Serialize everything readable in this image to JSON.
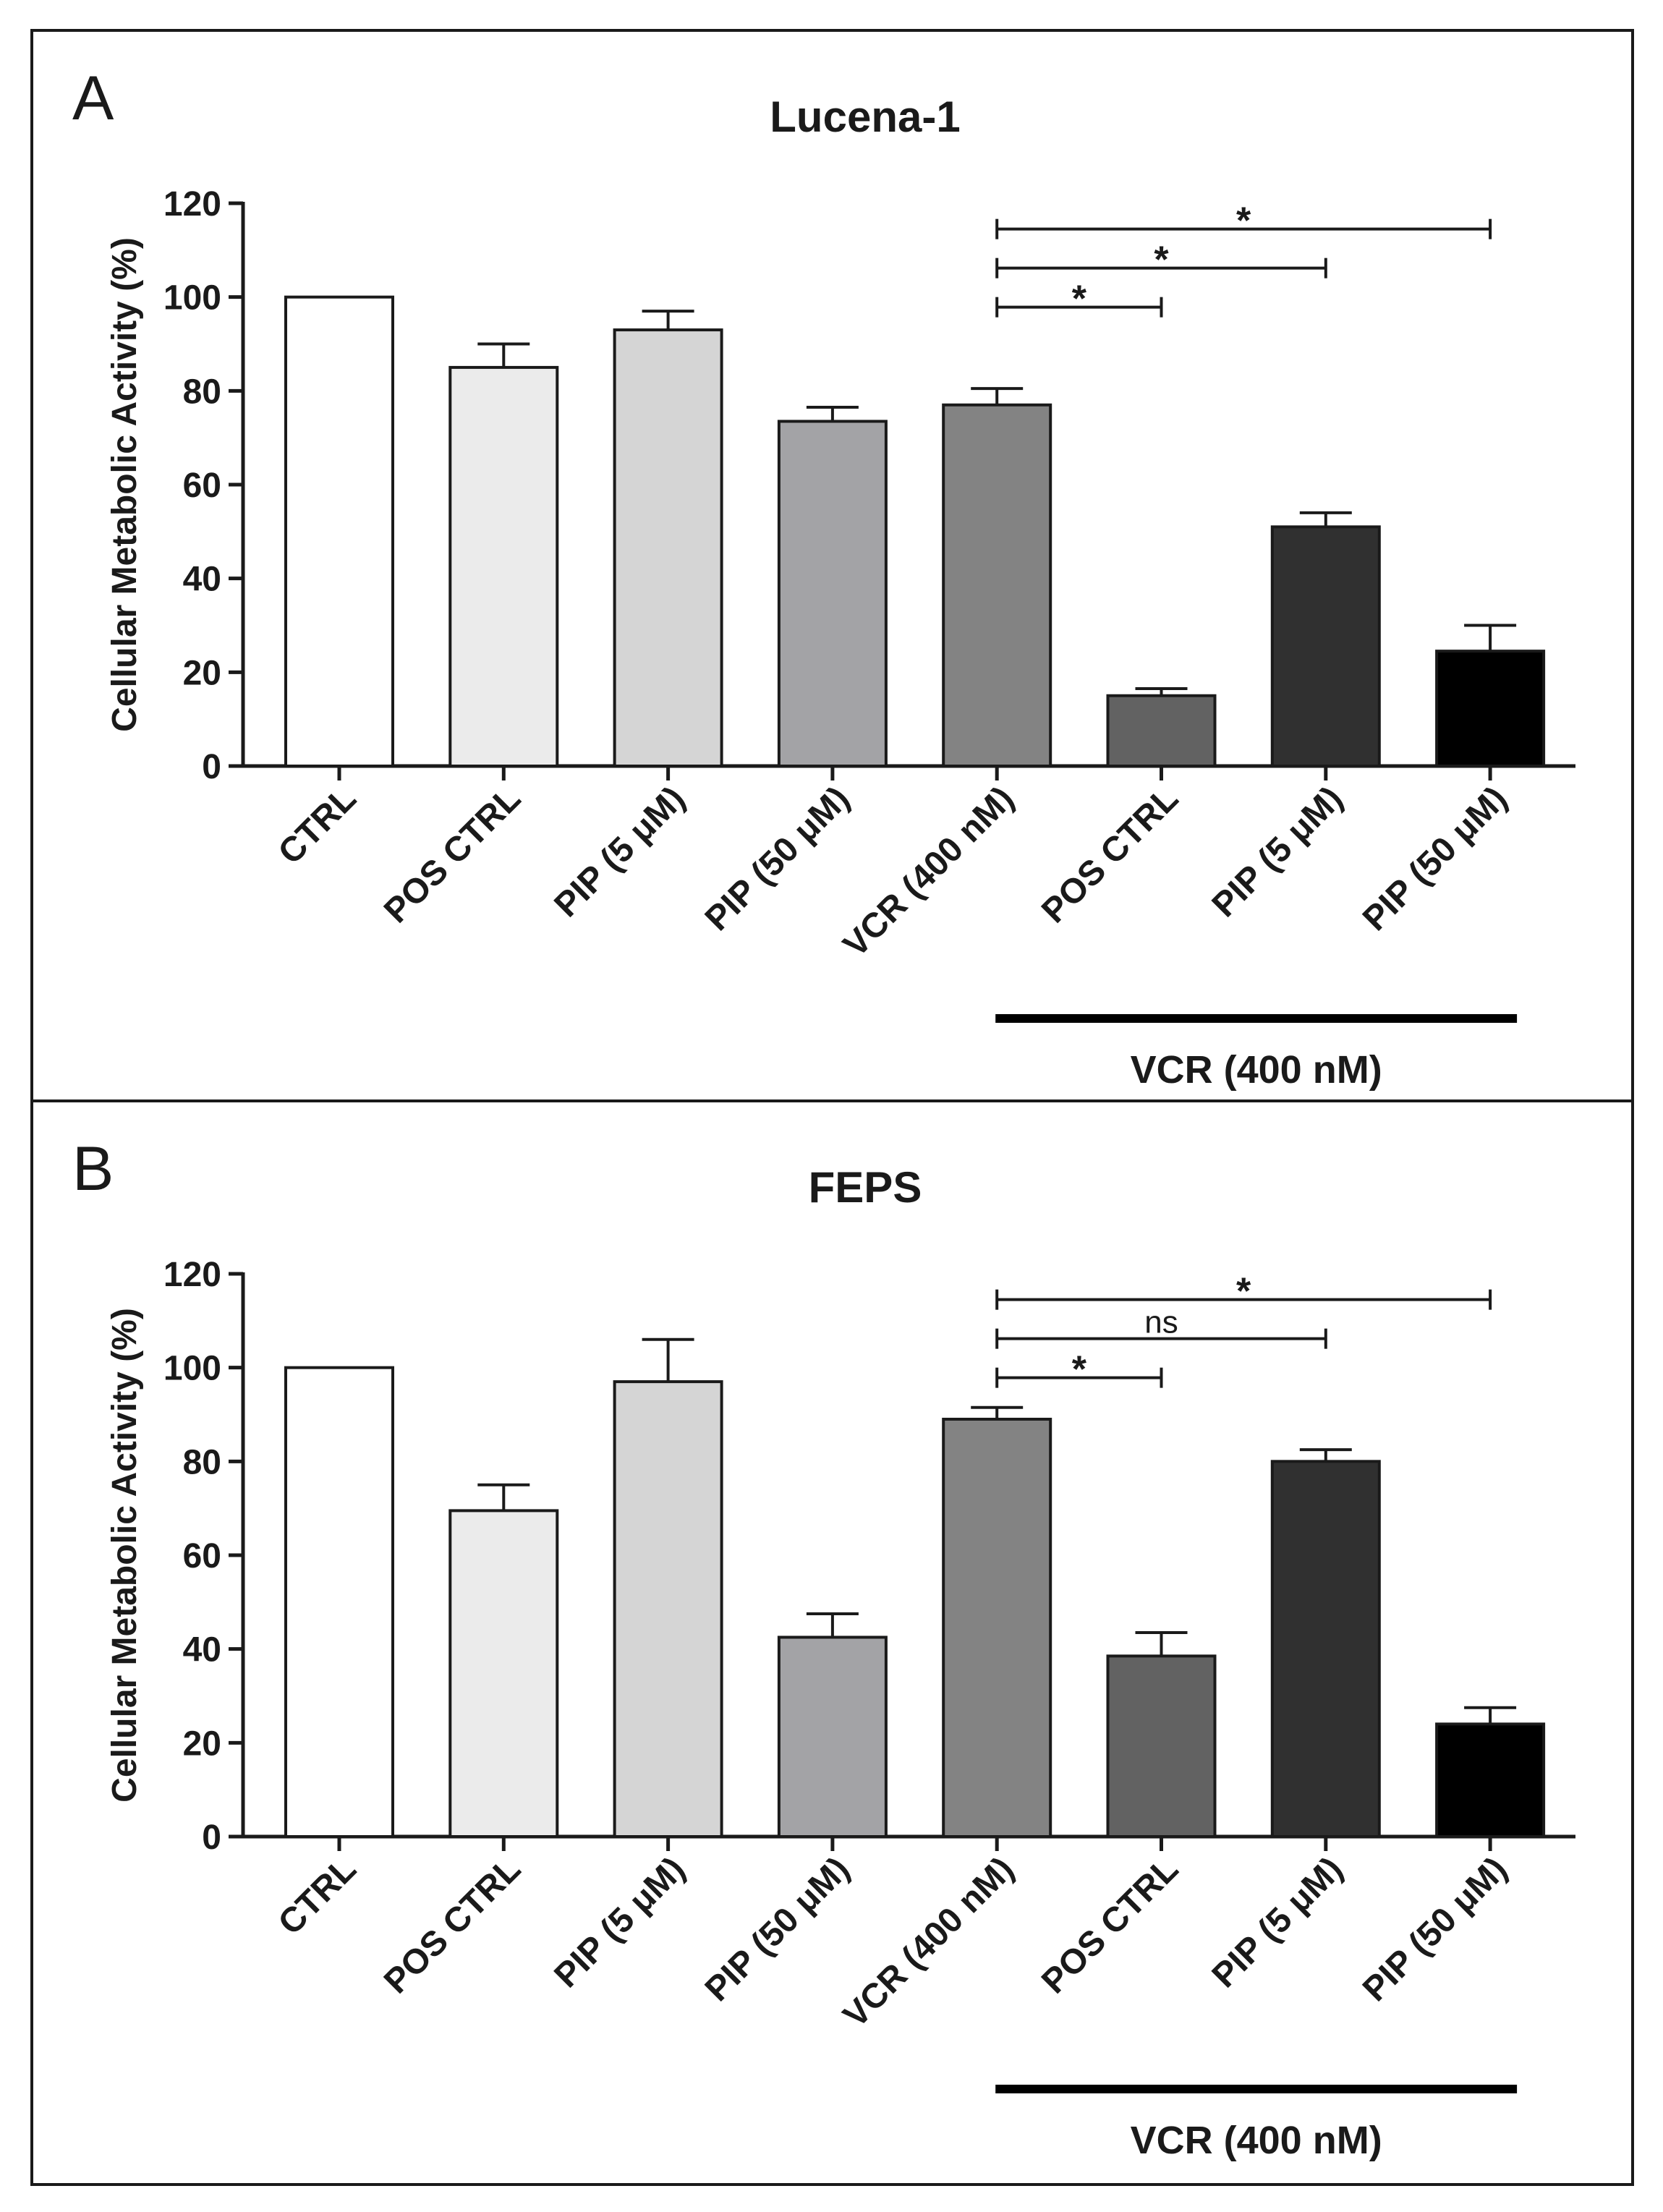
{
  "figure": {
    "border_color": "#1a1a1a"
  },
  "chart_data": [
    {
      "panel_label": "A",
      "type": "bar",
      "title": "Lucena-1",
      "ylabel": "Cellular Metabolic Activity (%)",
      "xlabel": "",
      "ylim": [
        0,
        120
      ],
      "yticks": [
        0,
        20,
        40,
        60,
        80,
        100,
        120
      ],
      "categories": [
        "CTRL",
        "POS CTRL",
        "PIP (5 μM)",
        "PIP (50 μM)",
        "VCR (400 nM)",
        "POS CTRL",
        "PIP (5 μM)",
        "PIP (50 μM)"
      ],
      "values": [
        100,
        85,
        93,
        73.5,
        77,
        15,
        51,
        24.5
      ],
      "errors": [
        0,
        5,
        4,
        3,
        3.5,
        1.5,
        3,
        5.5
      ],
      "colors": [
        "#ffffff",
        "#ebebeb",
        "#d5d5d5",
        "#a3a3a6",
        "#838383",
        "#626262",
        "#303030",
        "#000000"
      ],
      "group_label": "VCR (400 nM)",
      "group_span": [
        4,
        7
      ],
      "significance": [
        {
          "from": 4,
          "to": 5,
          "label": "*"
        },
        {
          "from": 4,
          "to": 6,
          "label": "*"
        },
        {
          "from": 4,
          "to": 7,
          "label": "*"
        }
      ],
      "grid": false
    },
    {
      "panel_label": "B",
      "type": "bar",
      "title": "FEPS",
      "ylabel": "Cellular Metabolic Activity (%)",
      "xlabel": "",
      "ylim": [
        0,
        120
      ],
      "yticks": [
        0,
        20,
        40,
        60,
        80,
        100,
        120
      ],
      "categories": [
        "CTRL",
        "POS CTRL",
        "PIP (5 μM)",
        "PIP (50 μM)",
        "VCR (400 nM)",
        "POS CTRL",
        "PIP (5 μM)",
        "PIP (50 μM)"
      ],
      "values": [
        100,
        69.5,
        97,
        42.5,
        89,
        38.5,
        80,
        24
      ],
      "errors": [
        0,
        5.5,
        9,
        5,
        2.5,
        5,
        2.5,
        3.5
      ],
      "colors": [
        "#ffffff",
        "#ebebeb",
        "#d5d5d5",
        "#a3a3a6",
        "#838383",
        "#626262",
        "#303030",
        "#000000"
      ],
      "group_label": "VCR (400 nM)",
      "group_span": [
        4,
        7
      ],
      "significance": [
        {
          "from": 4,
          "to": 5,
          "label": "*"
        },
        {
          "from": 4,
          "to": 6,
          "label": "ns"
        },
        {
          "from": 4,
          "to": 7,
          "label": "*"
        }
      ],
      "grid": false
    }
  ]
}
